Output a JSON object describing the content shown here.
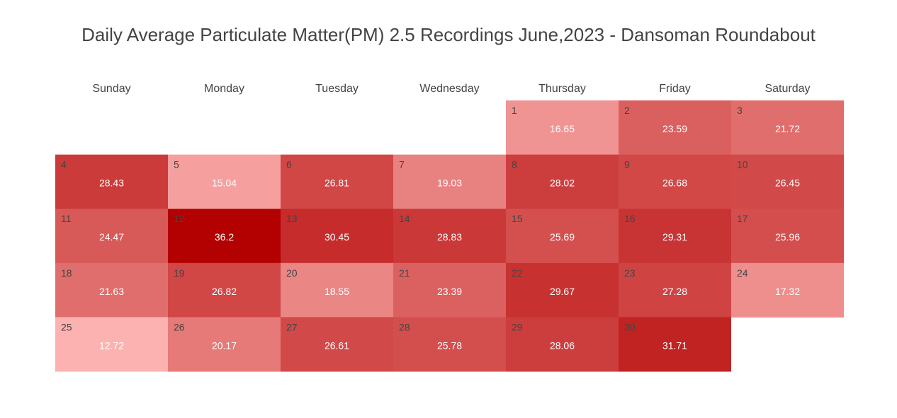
{
  "chart_data": {
    "type": "heatmap",
    "title": "Daily Average Particulate Matter(PM) 2.5 Recordings June,2023 - Dansoman Roundabout",
    "weekdays": [
      "Sunday",
      "Monday",
      "Tuesday",
      "Wednesday",
      "Thursday",
      "Friday",
      "Saturday"
    ],
    "first_weekday_index": 4,
    "days": [
      1,
      2,
      3,
      4,
      5,
      6,
      7,
      8,
      9,
      10,
      11,
      12,
      13,
      14,
      15,
      16,
      17,
      18,
      19,
      20,
      21,
      22,
      23,
      24,
      25,
      26,
      27,
      28,
      29,
      30
    ],
    "values": [
      "16.65",
      "23.59",
      "21.72",
      "28.43",
      "15.04",
      "26.81",
      "19.03",
      "28.02",
      "26.68",
      "26.45",
      "24.47",
      "36.2",
      "30.45",
      "28.83",
      "25.69",
      "29.31",
      "25.96",
      "21.63",
      "26.82",
      "18.55",
      "23.39",
      "29.67",
      "27.28",
      "17.32",
      "12.72",
      "20.17",
      "26.61",
      "25.78",
      "28.06",
      "31.71"
    ],
    "colorscale": {
      "low": "#fcb2b0",
      "high": "#b30000"
    }
  }
}
